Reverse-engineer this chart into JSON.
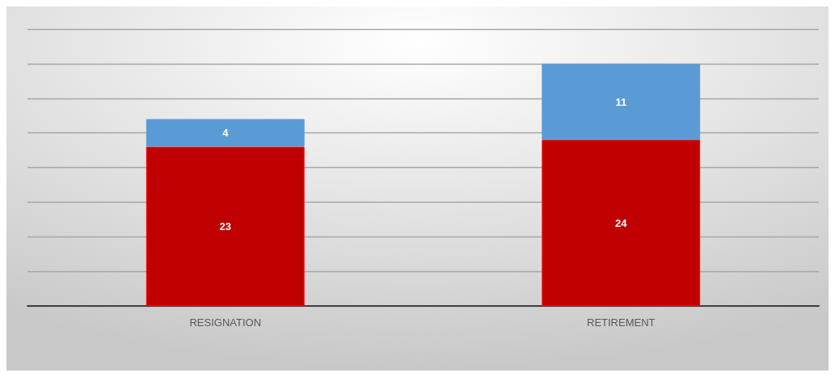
{
  "chart_data": {
    "type": "bar",
    "stacked": true,
    "categories": [
      "RESIGNATION",
      "RETIREMENT"
    ],
    "series": [
      {
        "color": "#c00000",
        "values": [
          23,
          24
        ]
      },
      {
        "color": "#5b9bd5",
        "values": [
          4,
          11
        ]
      }
    ],
    "ylim": [
      0,
      40
    ],
    "yticks": [
      0,
      5,
      10,
      15,
      20,
      25,
      30,
      35,
      40
    ],
    "grid": "y",
    "tick_labels": "x",
    "data_labels": true
  }
}
